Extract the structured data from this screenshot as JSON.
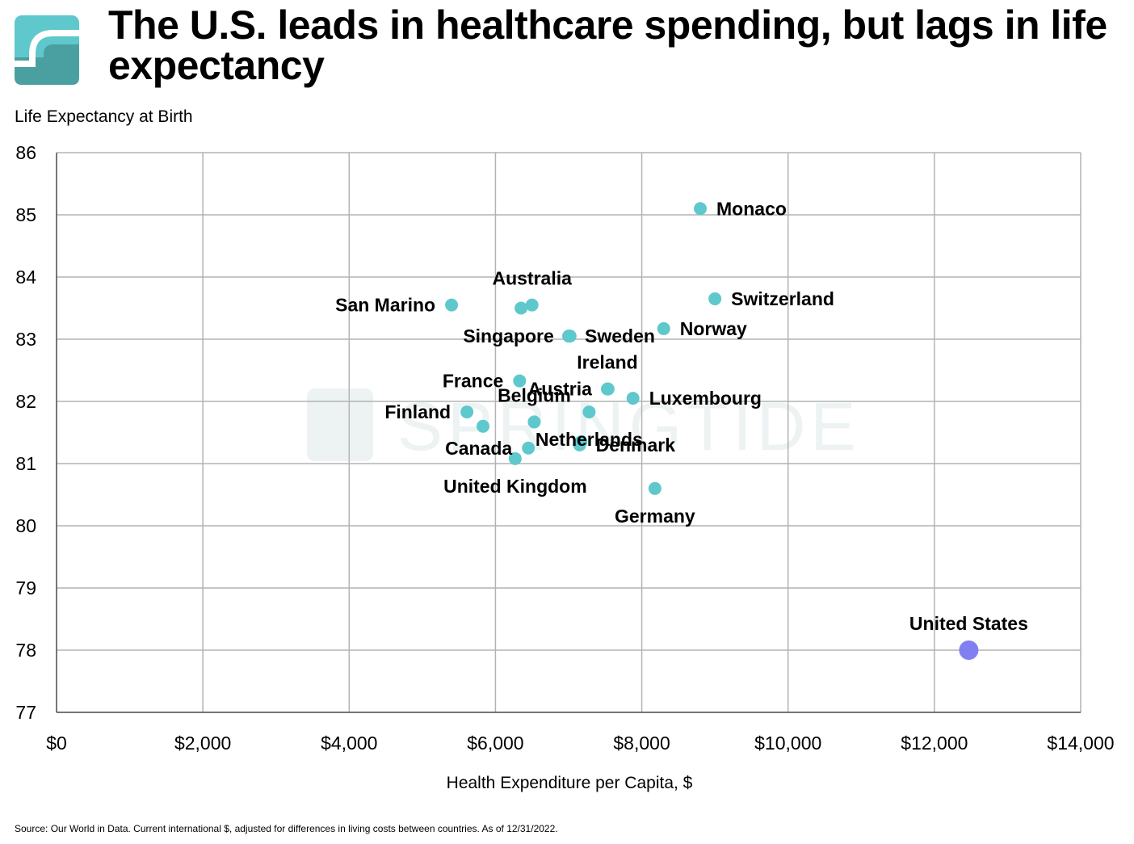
{
  "header": {
    "title": "The U.S. leads in healthcare spending, but lags in life expectancy",
    "logo_icon": "springtide-s-logo-icon"
  },
  "watermark": "SPRINGTIDE",
  "footer": {
    "source": "Source: Our World in Data. Current international $, adjusted for differences in living costs between countries. As of 12/31/2022."
  },
  "colors": {
    "point": "#5fc8cc",
    "highlight": "#8080f2",
    "grid": "#b3b3b3",
    "logo_light": "#5fc8cc",
    "logo_dark": "#4a9fa0"
  },
  "chart_data": {
    "type": "scatter",
    "title": "The U.S. leads in healthcare spending, but lags in life expectancy",
    "xlabel": "Health Expenditure per Capita, $",
    "ylabel": "Life Expectancy at Birth",
    "xlim": [
      0,
      14000
    ],
    "ylim": [
      77,
      86
    ],
    "grid": true,
    "x_ticks": [
      0,
      2000,
      4000,
      6000,
      8000,
      10000,
      12000,
      14000
    ],
    "x_tick_labels": [
      "$0",
      "$2,000",
      "$4,000",
      "$6,000",
      "$8,000",
      "$10,000",
      "$12,000",
      "$14,000"
    ],
    "y_ticks": [
      77,
      78,
      79,
      80,
      81,
      82,
      83,
      84,
      85,
      86
    ],
    "y_tick_labels": [
      "77",
      "78",
      "79",
      "80",
      "81",
      "82",
      "83",
      "84",
      "85",
      "86"
    ],
    "points": [
      {
        "x": 8800,
        "y": 85.1,
        "label": "Monaco",
        "label_pos": "right"
      },
      {
        "x": 9000,
        "y": 83.65,
        "label": "Switzerland",
        "label_pos": "right"
      },
      {
        "x": 8300,
        "y": 83.17,
        "label": "Norway",
        "label_pos": "right"
      },
      {
        "x": 7880,
        "y": 82.05,
        "label": "Luxembourg",
        "label_pos": "right"
      },
      {
        "x": 7150,
        "y": 81.3,
        "label": "Denmark",
        "label_pos": "right"
      },
      {
        "x": 6500,
        "y": 83.55,
        "label": "Australia",
        "label_pos": "above"
      },
      {
        "x": 6350,
        "y": 83.5,
        "label": "",
        "label_pos": "none"
      },
      {
        "x": 5400,
        "y": 83.55,
        "label": "San Marino",
        "label_pos": "left"
      },
      {
        "x": 7020,
        "y": 83.05,
        "label": "Singapore",
        "label_pos": "left"
      },
      {
        "x": 7000,
        "y": 83.05,
        "label": "Sweden",
        "label_pos": "right"
      },
      {
        "x": 6330,
        "y": 82.33,
        "label": "France",
        "label_pos": "left"
      },
      {
        "x": 7530,
        "y": 82.2,
        "label": "Ireland",
        "label_pos": "above"
      },
      {
        "x": 7540,
        "y": 82.2,
        "label": "Austria",
        "label_pos": "left"
      },
      {
        "x": 6530,
        "y": 81.67,
        "label": "Belgium",
        "label_pos": "above"
      },
      {
        "x": 7280,
        "y": 81.83,
        "label": "Netherlands",
        "label_pos": "below"
      },
      {
        "x": 5610,
        "y": 81.83,
        "label": "Finland",
        "label_pos": "left"
      },
      {
        "x": 5830,
        "y": 81.6,
        "label": "",
        "label_pos": "none"
      },
      {
        "x": 6450,
        "y": 81.25,
        "label": "Canada",
        "label_pos": "left"
      },
      {
        "x": 7170,
        "y": 81.35,
        "label": "",
        "label_pos": "none"
      },
      {
        "x": 6270,
        "y": 81.08,
        "label": "United Kingdom",
        "label_pos": "below"
      },
      {
        "x": 8180,
        "y": 80.6,
        "label": "Germany",
        "label_pos": "below"
      },
      {
        "x": 12470,
        "y": 78.0,
        "label": "United States",
        "label_pos": "above",
        "highlight": true
      }
    ]
  }
}
